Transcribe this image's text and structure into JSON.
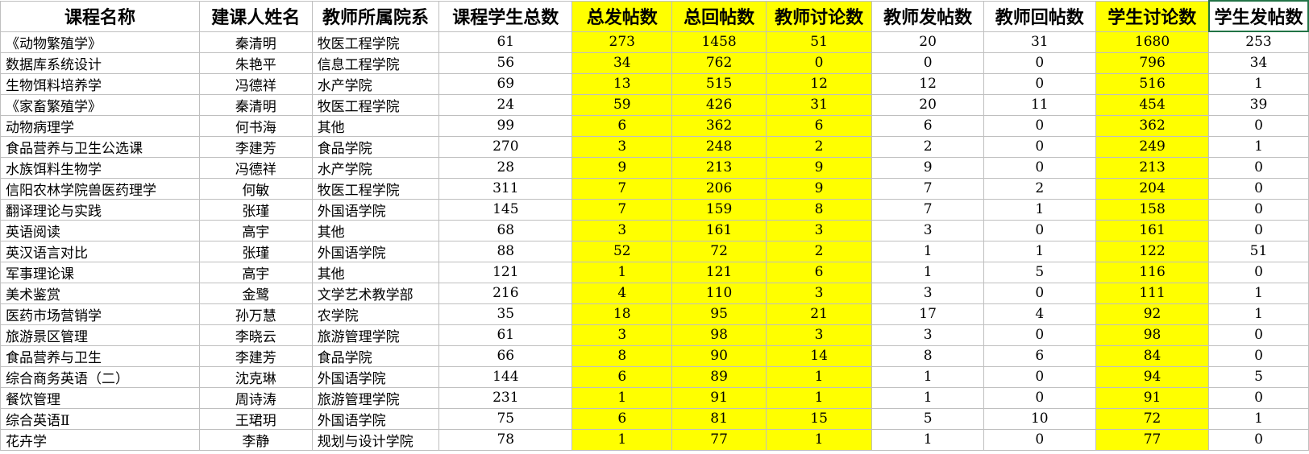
{
  "highlight_color": "#ffff00",
  "selection_color": "#217346",
  "table": {
    "headers": [
      "课程名称",
      "建课人姓名",
      "教师所属院系",
      "课程学生总数",
      "总发帖数",
      "总回帖数",
      "教师讨论数",
      "教师发帖数",
      "教师回帖数",
      "学生讨论数",
      "学生发帖数"
    ],
    "highlighted_columns": [
      4,
      5,
      6,
      9
    ],
    "rows": [
      [
        "《动物繁殖学》",
        "秦清明",
        "牧医工程学院",
        "61",
        "273",
        "1458",
        "51",
        "20",
        "31",
        "1680",
        "253"
      ],
      [
        "数据库系统设计",
        "朱艳平",
        "信息工程学院",
        "56",
        "34",
        "762",
        "0",
        "0",
        "0",
        "796",
        "34"
      ],
      [
        "生物饵料培养学",
        "冯德祥",
        "水产学院",
        "69",
        "13",
        "515",
        "12",
        "12",
        "0",
        "516",
        "1"
      ],
      [
        "《家畜繁殖学》",
        "秦清明",
        "牧医工程学院",
        "24",
        "59",
        "426",
        "31",
        "20",
        "11",
        "454",
        "39"
      ],
      [
        "动物病理学",
        "何书海",
        "其他",
        "99",
        "6",
        "362",
        "6",
        "6",
        "0",
        "362",
        "0"
      ],
      [
        "食品营养与卫生公选课",
        "李建芳",
        "食品学院",
        "270",
        "3",
        "248",
        "2",
        "2",
        "0",
        "249",
        "1"
      ],
      [
        "水族饵料生物学",
        "冯德祥",
        "水产学院",
        "28",
        "9",
        "213",
        "9",
        "9",
        "0",
        "213",
        "0"
      ],
      [
        "信阳农林学院兽医药理学",
        "何敏",
        "牧医工程学院",
        "311",
        "7",
        "206",
        "9",
        "7",
        "2",
        "204",
        "0"
      ],
      [
        "翻译理论与实践",
        "张瑾",
        "外国语学院",
        "145",
        "7",
        "159",
        "8",
        "7",
        "1",
        "158",
        "0"
      ],
      [
        "英语阅读",
        "高宇",
        "其他",
        "68",
        "3",
        "161",
        "3",
        "3",
        "0",
        "161",
        "0"
      ],
      [
        "英汉语言对比",
        "张瑾",
        "外国语学院",
        "88",
        "52",
        "72",
        "2",
        "1",
        "1",
        "122",
        "51"
      ],
      [
        "军事理论课",
        "高宇",
        "其他",
        "121",
        "1",
        "121",
        "6",
        "1",
        "5",
        "116",
        "0"
      ],
      [
        "美术鉴赏",
        "金鹭",
        "文学艺术教学部",
        "216",
        "4",
        "110",
        "3",
        "3",
        "0",
        "111",
        "1"
      ],
      [
        "医药市场营销学",
        "孙万慧",
        "农学院",
        "35",
        "18",
        "95",
        "21",
        "17",
        "4",
        "92",
        "1"
      ],
      [
        "旅游景区管理",
        "李晓云",
        "旅游管理学院",
        "61",
        "3",
        "98",
        "3",
        "3",
        "0",
        "98",
        "0"
      ],
      [
        "食品营养与卫生",
        "李建芳",
        "食品学院",
        "66",
        "8",
        "90",
        "14",
        "8",
        "6",
        "84",
        "0"
      ],
      [
        "综合商务英语（二）",
        "沈克琳",
        "外国语学院",
        "144",
        "6",
        "89",
        "1",
        "1",
        "0",
        "94",
        "5"
      ],
      [
        "餐饮管理",
        "周诗涛",
        "旅游管理学院",
        "231",
        "1",
        "91",
        "1",
        "1",
        "0",
        "91",
        "0"
      ],
      [
        "综合英语Ⅱ",
        "王珺玥",
        "外国语学院",
        "75",
        "6",
        "81",
        "15",
        "5",
        "10",
        "72",
        "1"
      ],
      [
        "花卉学",
        "李静",
        "规划与设计学院",
        "78",
        "1",
        "77",
        "1",
        "1",
        "0",
        "77",
        "0"
      ]
    ]
  }
}
